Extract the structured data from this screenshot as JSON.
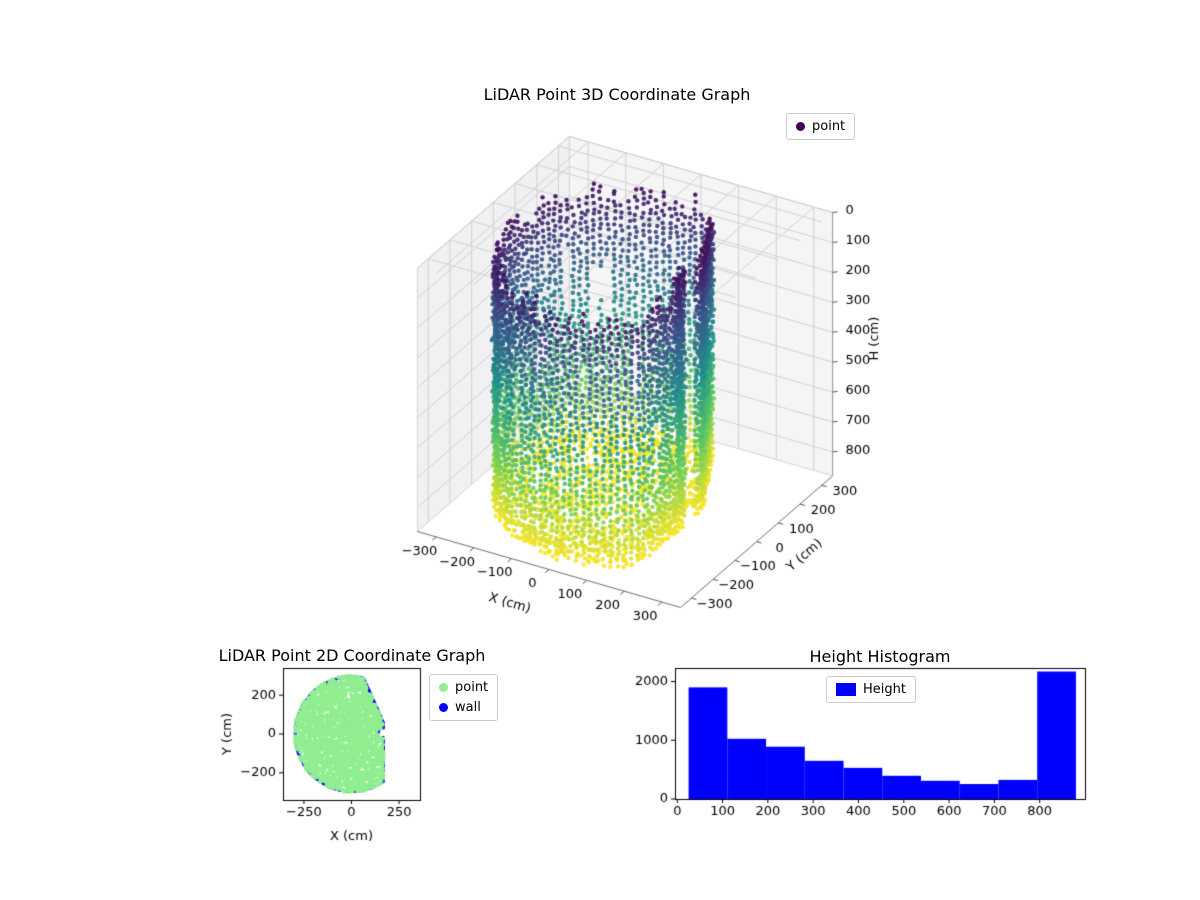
{
  "figure": {
    "background": "#ffffff"
  },
  "chart_data": [
    {
      "id": "lidar-3d-scatter",
      "type": "scatter",
      "projection": "3d",
      "title": "LiDAR Point 3D Coordinate Graph",
      "xlabel": "X (cm)",
      "ylabel": "Y (cm)",
      "zlabel": "H (cm)",
      "xlim": [
        -350,
        350
      ],
      "ylim": [
        -350,
        350
      ],
      "zlim": [
        0,
        880
      ],
      "xticks": [
        -300,
        -200,
        -100,
        0,
        100,
        200,
        300
      ],
      "yticks": [
        -300,
        -200,
        -100,
        0,
        100,
        200,
        300
      ],
      "zticks": [
        0,
        100,
        200,
        300,
        400,
        500,
        600,
        700,
        800
      ],
      "z_axis_inverted": true,
      "colormap": "viridis",
      "legend": [
        {
          "label": "point",
          "color": "#440154",
          "marker": "circle"
        }
      ],
      "view": {
        "elev": 30,
        "azim": -60
      },
      "cloud": {
        "shape": "cylindrical room wall point cloud colored by height",
        "radius_cm": 300,
        "flat_wall_x_cm": 170,
        "h_min_cm": 20,
        "h_max_cm": 880,
        "columns": 115,
        "floor_points": 1250
      }
    },
    {
      "id": "lidar-2d-scatter",
      "type": "scatter",
      "title": "LiDAR Point 2D Coordinate Graph",
      "xlabel": "X (cm)",
      "ylabel": "Y (cm)",
      "xlim": [
        -360,
        360
      ],
      "ylim": [
        -340,
        340
      ],
      "xticks": [
        -250,
        0,
        250
      ],
      "yticks": [
        -200,
        0,
        200
      ],
      "legend": [
        {
          "label": "point",
          "color": "#90ee90",
          "marker": "circle"
        },
        {
          "label": "wall",
          "color": "#0000ff",
          "marker": "circle"
        }
      ],
      "region": {
        "radius_cm": 300,
        "flat_wall_x_cm": 170,
        "center": [
          0,
          0
        ]
      }
    },
    {
      "id": "height-histogram",
      "type": "bar",
      "title": "Height Histogram",
      "legend": [
        {
          "label": "Height",
          "color": "#0000ff",
          "marker": "rect"
        }
      ],
      "bar_color": "#0000ff",
      "bin_start": 25,
      "bin_width": 85.5,
      "bin_edges": [
        25,
        110.5,
        196,
        281.5,
        367,
        452.5,
        538,
        623.5,
        709,
        794.5,
        880
      ],
      "values": [
        1900,
        1025,
        890,
        650,
        530,
        395,
        310,
        255,
        325,
        2170
      ],
      "xticks": [
        0,
        100,
        200,
        300,
        400,
        500,
        600,
        700,
        800
      ],
      "yticks": [
        0,
        1000,
        2000
      ],
      "xlim": [
        -5,
        900
      ],
      "ylim": [
        0,
        2230
      ]
    }
  ]
}
